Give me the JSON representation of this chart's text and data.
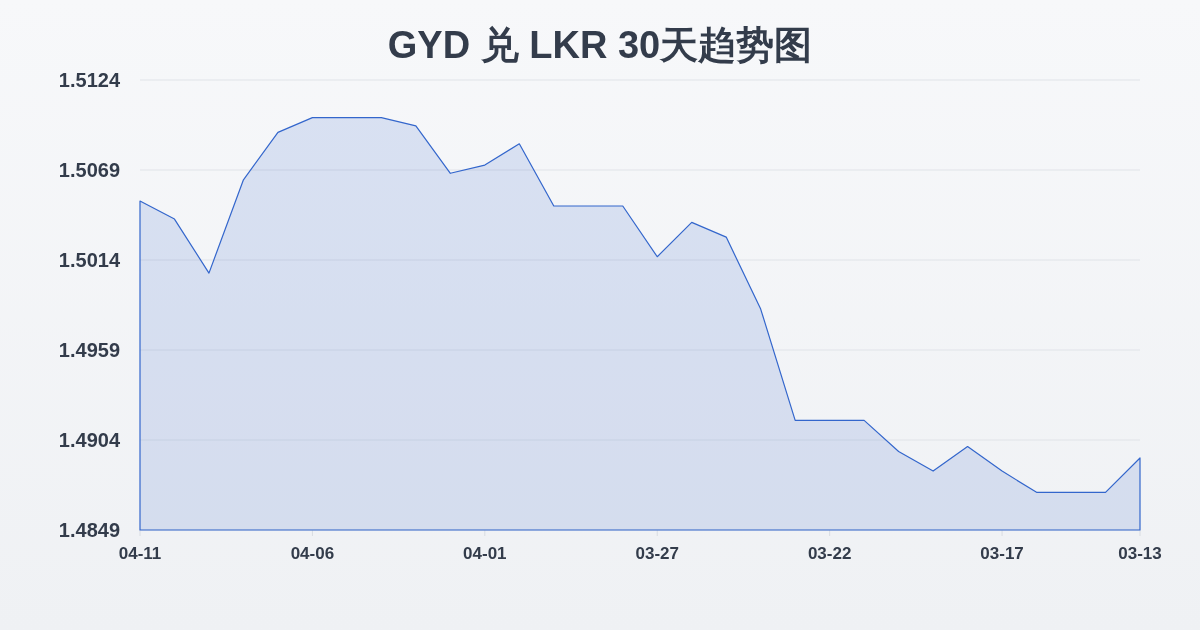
{
  "chart_data": {
    "type": "area",
    "title": "GYD 兑 LKR 30天趋势图",
    "categories": [
      "04-11",
      null,
      null,
      null,
      null,
      "04-06",
      null,
      null,
      null,
      null,
      "04-01",
      null,
      null,
      null,
      null,
      "03-27",
      null,
      null,
      null,
      null,
      "03-22",
      null,
      null,
      null,
      null,
      "03-17",
      null,
      null,
      null,
      "03-13"
    ],
    "series": [
      {
        "color": "#3366cc",
        "values": [
          1.505,
          1.5039,
          1.5006,
          1.5063,
          1.5092,
          1.5101,
          1.5101,
          1.5101,
          1.5096,
          1.5067,
          1.5072,
          1.5085,
          1.5047,
          1.5047,
          1.5047,
          1.5016,
          1.5037,
          1.5028,
          1.4984,
          1.4916,
          1.4916,
          1.4916,
          1.4897,
          1.4885,
          1.49,
          1.4885,
          1.4872,
          1.4872,
          1.4872,
          1.4893
        ]
      }
    ],
    "ylim": [
      1.4849,
      1.5124
    ],
    "yticks": [
      1.4849,
      1.4904,
      1.4959,
      1.5014,
      1.5069,
      1.5124
    ],
    "grid": "y",
    "marker": "none"
  }
}
